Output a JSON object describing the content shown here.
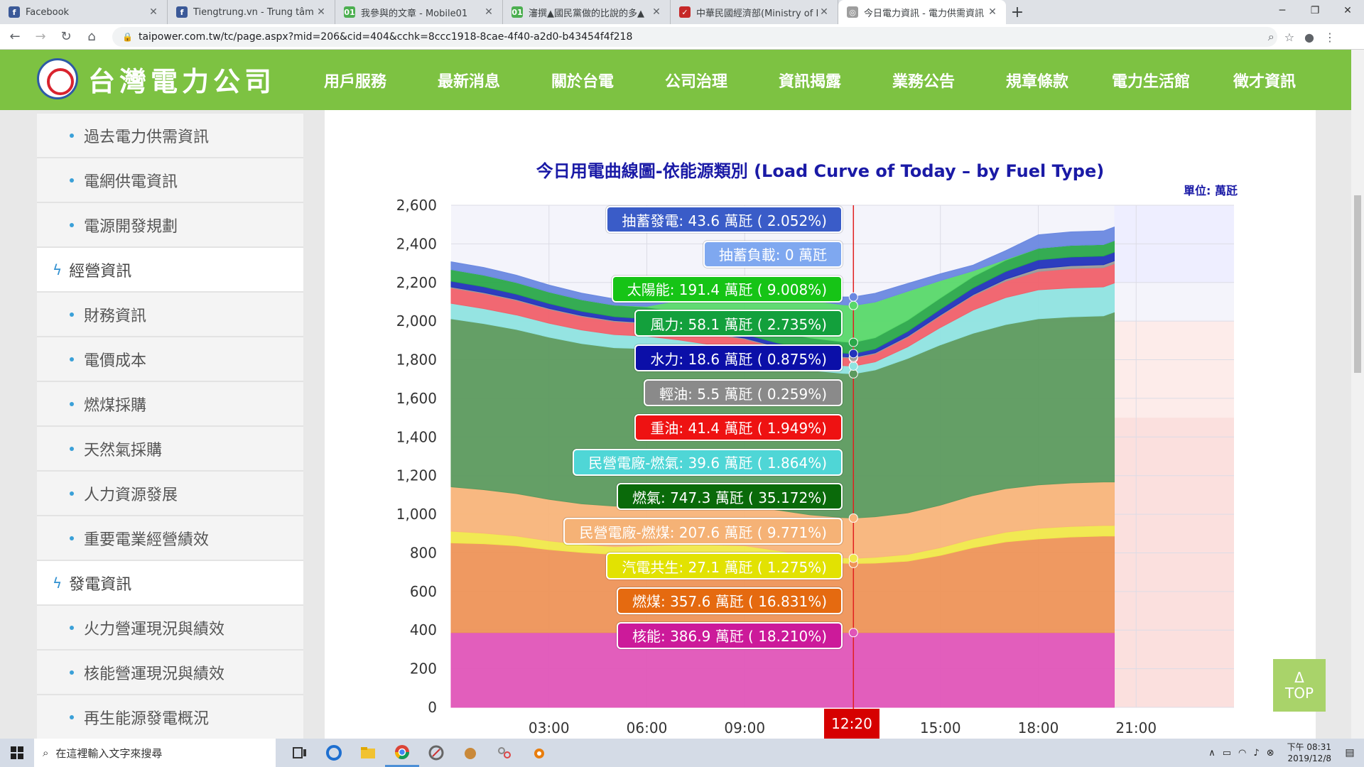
{
  "browser": {
    "tabs": [
      {
        "title": "Facebook",
        "fav_color": "#3b5998",
        "fav_glyph": "f"
      },
      {
        "title": "Tiengtrung.vn - Trung tâm tiếng",
        "fav_color": "#3b5998",
        "fav_glyph": "f"
      },
      {
        "title": "我參與的文章 - Mobile01",
        "fav_color": "#4caf50",
        "fav_glyph": "01"
      },
      {
        "title": "瀋撰▲國民黨做的比說的多▲",
        "fav_color": "#4caf50",
        "fav_glyph": "01"
      },
      {
        "title": "中華民國經濟部(Ministry of Eco",
        "fav_color": "#c62828",
        "fav_glyph": "✓"
      },
      {
        "title": "今日電力資訊 - 電力供需資訊 - 三",
        "fav_color": "#9e9e9e",
        "fav_glyph": "◎"
      }
    ],
    "active_tab": 5,
    "url": "taipower.com.tw/tc/page.aspx?mid=206&cid=404&cchk=8ccc1918-8cae-4f40-a2d0-b43454f4f218"
  },
  "site": {
    "logo_text": "台灣電力公司",
    "nav": [
      "用戶服務",
      "最新消息",
      "關於台電",
      "公司治理",
      "資訊揭露",
      "業務公告",
      "規章條款",
      "電力生活館",
      "徵才資訊"
    ],
    "active_nav": 4
  },
  "sidebar": {
    "items": [
      {
        "type": "sub",
        "label": "過去電力供需資訊"
      },
      {
        "type": "sub",
        "label": "電網供電資訊"
      },
      {
        "type": "sub",
        "label": "電源開發規劃"
      },
      {
        "type": "group",
        "label": "經營資訊"
      },
      {
        "type": "sub",
        "label": "財務資訊"
      },
      {
        "type": "sub",
        "label": "電價成本"
      },
      {
        "type": "sub",
        "label": "燃煤採購"
      },
      {
        "type": "sub",
        "label": "天然氣採購"
      },
      {
        "type": "sub",
        "label": "人力資源發展"
      },
      {
        "type": "sub",
        "label": "重要電業經營績效"
      },
      {
        "type": "group",
        "label": "發電資訊"
      },
      {
        "type": "sub",
        "label": "火力營運現況與績效"
      },
      {
        "type": "sub",
        "label": "核能營運現況與績效"
      },
      {
        "type": "sub",
        "label": "再生能源發電概況"
      }
    ]
  },
  "chart_data": {
    "type": "area",
    "stacked": true,
    "title": "今日用電曲線圖-依能源類別 (Load Curve of Today – by Fuel Type)",
    "unit_label": "單位: 萬瓩",
    "x_tick_labels": [
      "03:00",
      "06:00",
      "09:00",
      "15:00",
      "18:00",
      "21:00"
    ],
    "x_ticks_hours": [
      3,
      6,
      9,
      15,
      18,
      21
    ],
    "xlim_hours": [
      0,
      24
    ],
    "ylim": [
      0,
      2600
    ],
    "y_ticks": [
      0,
      200,
      400,
      600,
      800,
      1000,
      1200,
      1400,
      1600,
      1800,
      2000,
      2200,
      2400,
      2600
    ],
    "y_tick_labels": [
      "0",
      "200",
      "400",
      "600",
      "800",
      "1,000",
      "1,200",
      "1,400",
      "1,600",
      "1,800",
      "2,000",
      "2,200",
      "2,400",
      "2,600"
    ],
    "current_time": "12:20",
    "current_time_hours": 12.333,
    "x_hours": [
      0,
      1,
      2,
      3,
      4,
      5,
      6,
      7,
      8,
      9,
      10,
      11,
      12,
      12.333,
      13,
      14,
      15,
      16,
      17,
      18,
      19,
      20,
      20.33
    ],
    "series": [
      {
        "name": "核能",
        "color": "#e055b8",
        "values": [
          387,
          387,
          387,
          387,
          387,
          387,
          387,
          387,
          387,
          387,
          387,
          387,
          387,
          387,
          387,
          387,
          387,
          387,
          387,
          387,
          387,
          387,
          387
        ]
      },
      {
        "name": "燃煤",
        "color": "#ee9458",
        "values": [
          465,
          460,
          450,
          430,
          415,
          405,
          410,
          415,
          415,
          412,
          390,
          370,
          360,
          358,
          360,
          370,
          400,
          440,
          470,
          485,
          495,
          500,
          500
        ]
      },
      {
        "name": "汽電共生",
        "color": "#f0e84a",
        "values": [
          60,
          55,
          50,
          45,
          42,
          40,
          40,
          40,
          40,
          38,
          35,
          30,
          28,
          27,
          30,
          35,
          40,
          45,
          50,
          55,
          55,
          55,
          55
        ]
      },
      {
        "name": "民營電廠-燃煤",
        "color": "#f8b47a",
        "values": [
          230,
          225,
          220,
          215,
          210,
          210,
          210,
          210,
          210,
          210,
          210,
          210,
          208,
          208,
          210,
          215,
          220,
          225,
          225,
          225,
          225,
          225,
          225
        ]
      },
      {
        "name": "燃氣",
        "color": "#5c9a5e",
        "values": [
          870,
          860,
          850,
          840,
          830,
          820,
          810,
          790,
          770,
          760,
          750,
          748,
          747,
          747,
          760,
          800,
          830,
          840,
          850,
          860,
          860,
          860,
          880
        ]
      },
      {
        "name": "民營電廠-燃氣",
        "color": "#8fe3e0",
        "values": [
          80,
          78,
          75,
          72,
          70,
          68,
          65,
          60,
          55,
          50,
          45,
          42,
          40,
          40,
          42,
          60,
          90,
          120,
          140,
          150,
          150,
          150,
          150
        ]
      },
      {
        "name": "重油",
        "color": "#f0606a",
        "values": [
          80,
          78,
          75,
          72,
          70,
          68,
          65,
          60,
          55,
          50,
          45,
          42,
          41,
          41,
          42,
          50,
          60,
          75,
          85,
          95,
          100,
          100,
          100
        ]
      },
      {
        "name": "輕油",
        "color": "#9a9a9a",
        "values": [
          5,
          5,
          5,
          5,
          5,
          5,
          5,
          5,
          5,
          5,
          5,
          5,
          5,
          5,
          5,
          5,
          5,
          5,
          10,
          15,
          15,
          15,
          15
        ]
      },
      {
        "name": "水力",
        "color": "#2233bb",
        "values": [
          30,
          30,
          28,
          25,
          22,
          20,
          20,
          20,
          20,
          20,
          20,
          19,
          19,
          19,
          20,
          25,
          30,
          35,
          40,
          45,
          45,
          45,
          45
        ]
      },
      {
        "name": "風力",
        "color": "#2aa84a",
        "values": [
          60,
          60,
          60,
          60,
          60,
          60,
          60,
          60,
          60,
          60,
          60,
          60,
          58,
          58,
          58,
          58,
          58,
          58,
          58,
          60,
          60,
          60,
          60
        ]
      },
      {
        "name": "太陽能",
        "color": "#58d86a",
        "values": [
          0,
          0,
          0,
          0,
          0,
          0,
          5,
          60,
          120,
          170,
          190,
          195,
          192,
          191,
          185,
          150,
          90,
          30,
          5,
          0,
          0,
          0,
          0
        ]
      },
      {
        "name": "抽蓄負載",
        "color": "#a0b0f0",
        "values": [
          0,
          0,
          0,
          0,
          0,
          0,
          0,
          0,
          0,
          0,
          0,
          0,
          0,
          0,
          0,
          0,
          0,
          0,
          0,
          0,
          0,
          0,
          0
        ]
      },
      {
        "name": "抽蓄發電",
        "color": "#6a88e0",
        "values": [
          40,
          40,
          38,
          36,
          34,
          32,
          30,
          10,
          5,
          5,
          10,
          20,
          40,
          44,
          45,
          40,
          35,
          30,
          45,
          70,
          70,
          70,
          70
        ]
      }
    ],
    "tooltip": [
      {
        "label": "抽蓄發電: 43.6 萬瓩 ( 2.052%)",
        "color": "#3a5cc8"
      },
      {
        "label": "抽蓄負載: 0 萬瓩",
        "color": "#7fa8f0"
      },
      {
        "label": "太陽能: 191.4 萬瓩 ( 9.008%)",
        "color": "#16c416"
      },
      {
        "label": "風力: 58.1 萬瓩 ( 2.735%)",
        "color": "#13a03c"
      },
      {
        "label": "水力: 18.6 萬瓩 ( 0.875%)",
        "color": "#0b0fa8"
      },
      {
        "label": "輕油: 5.5 萬瓩 ( 0.259%)",
        "color": "#8a8a8a"
      },
      {
        "label": "重油: 41.4 萬瓩 ( 1.949%)",
        "color": "#ee1212"
      },
      {
        "label": "民營電廠-燃氣: 39.6 萬瓩 ( 1.864%)",
        "color": "#4fd6d6"
      },
      {
        "label": "燃氣: 747.3 萬瓩 ( 35.172%)",
        "color": "#0a6a0a"
      },
      {
        "label": "民營電廠-燃煤: 207.6 萬瓩 ( 9.771%)",
        "color": "#f5b276"
      },
      {
        "label": "汽電共生: 27.1 萬瓩 ( 1.275%)",
        "color": "#e2e202"
      },
      {
        "label": "燃煤: 357.6 萬瓩 ( 16.831%)",
        "color": "#e56a10"
      },
      {
        "label": "核能: 386.9 萬瓩 ( 18.210%)",
        "color": "#cc1a9a"
      }
    ],
    "reserve_bands": [
      {
        "from": 2200,
        "to": 2600,
        "color": "#eeeeff"
      },
      {
        "from": 1500,
        "to": 2000,
        "color": "#fdecea"
      },
      {
        "from": 0,
        "to": 1500,
        "color": "#fbe0de"
      }
    ]
  },
  "ui": {
    "top_button": {
      "arrow": "Δ",
      "label": "TOP"
    }
  },
  "taskbar": {
    "search_placeholder": "在這裡輸入文字來搜尋",
    "clock_line1": "下午 08:31",
    "clock_line2": "2019/12/8"
  }
}
